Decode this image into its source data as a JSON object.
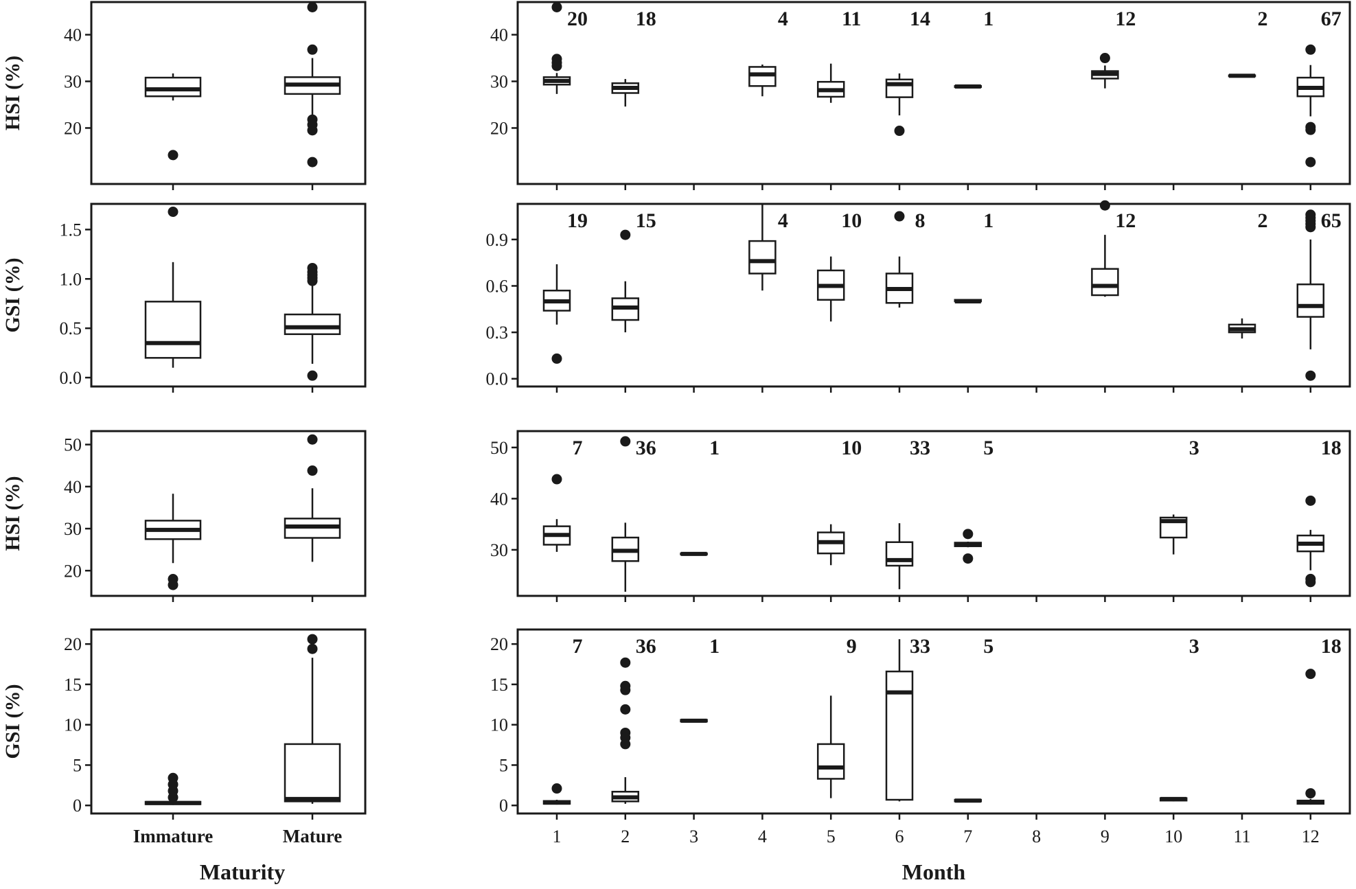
{
  "figure": {
    "left_xlabel": "Maturity",
    "right_xlabel": "Month",
    "maturity_labels": [
      "Immature",
      "Mature"
    ],
    "month_labels": [
      "1",
      "2",
      "3",
      "4",
      "5",
      "6",
      "7",
      "8",
      "9",
      "10",
      "11",
      "12"
    ]
  },
  "chart_data": [
    {
      "type": "box",
      "ylabel": "HSI (%)",
      "xlabel": "",
      "yticks": [
        20,
        30,
        40
      ],
      "ylim": [
        8,
        47
      ],
      "categories": [
        "Immature",
        "Mature"
      ],
      "boxes": [
        {
          "x": 1,
          "q1": 26.8,
          "median": 28.3,
          "q3": 30.8,
          "whislo": 25.9,
          "whishi": 31.7,
          "outliers": [
            14.2
          ]
        },
        {
          "x": 2,
          "q1": 27.3,
          "median": 29.3,
          "q3": 30.9,
          "whislo": 22.2,
          "whishi": 35.0,
          "outliers": [
            45.9,
            36.8,
            21.8,
            20.7,
            19.5,
            12.7
          ]
        }
      ]
    },
    {
      "type": "box",
      "ylabel": "HSI (%)",
      "xlabel": "",
      "yticks": [
        20,
        30,
        40
      ],
      "ylim": [
        8,
        47
      ],
      "categories": [
        "1",
        "2",
        "3",
        "4",
        "5",
        "6",
        "7",
        "8",
        "9",
        "10",
        "11",
        "12"
      ],
      "boxes": [
        {
          "x": 1,
          "q1": 29.3,
          "median": 30.1,
          "q3": 30.9,
          "whislo": 27.3,
          "whishi": 31.8,
          "outliers": [
            45.9,
            34.8,
            34.0,
            33.3
          ]
        },
        {
          "x": 2,
          "q1": 27.5,
          "median": 28.6,
          "q3": 29.6,
          "whislo": 24.6,
          "whishi": 30.5,
          "outliers": []
        },
        {
          "x": 4,
          "q1": 29.0,
          "median": 31.5,
          "q3": 33.1,
          "whislo": 26.8,
          "whishi": 33.6,
          "outliers": []
        },
        {
          "x": 5,
          "q1": 26.7,
          "median": 28.1,
          "q3": 29.9,
          "whislo": 25.4,
          "whishi": 33.8,
          "outliers": []
        },
        {
          "x": 6,
          "q1": 26.6,
          "median": 29.4,
          "q3": 30.4,
          "whislo": 22.7,
          "whishi": 31.7,
          "outliers": [
            19.4
          ]
        },
        {
          "x": 7,
          "q1": 28.8,
          "median": 28.9,
          "q3": 29.0,
          "whislo": 28.8,
          "whishi": 29.0,
          "outliers": []
        },
        {
          "x": 9,
          "q1": 30.6,
          "median": 31.6,
          "q3": 32.2,
          "whislo": 28.5,
          "whishi": 33.4,
          "outliers": [
            35.0
          ]
        },
        {
          "x": 11,
          "q1": 31.1,
          "median": 31.2,
          "q3": 31.3,
          "whislo": 31.1,
          "whishi": 31.3,
          "outliers": []
        },
        {
          "x": 12,
          "q1": 26.8,
          "median": 28.6,
          "q3": 30.8,
          "whislo": 22.5,
          "whishi": 33.5,
          "outliers": [
            36.8,
            20.2,
            19.6,
            12.7
          ]
        }
      ],
      "counts": [
        {
          "x": 1,
          "label": "20"
        },
        {
          "x": 2,
          "label": "18"
        },
        {
          "x": 4,
          "label": "4"
        },
        {
          "x": 5,
          "label": "11"
        },
        {
          "x": 6,
          "label": "14"
        },
        {
          "x": 7,
          "label": "1"
        },
        {
          "x": 9,
          "label": "12"
        },
        {
          "x": 11,
          "label": "2"
        },
        {
          "x": 12,
          "label": "67"
        }
      ]
    },
    {
      "type": "box",
      "ylabel": "GSI (%)",
      "xlabel": "",
      "yticks": [
        0.0,
        0.5,
        1.0,
        1.5
      ],
      "yticklabels": [
        "0.0",
        "0.5",
        "1.0",
        "1.5"
      ],
      "ylim": [
        -0.09,
        1.76
      ],
      "categories": [
        "Immature",
        "Mature"
      ],
      "boxes": [
        {
          "x": 1,
          "q1": 0.2,
          "median": 0.35,
          "q3": 0.77,
          "whislo": 0.1,
          "whishi": 1.17,
          "outliers": [
            1.68
          ]
        },
        {
          "x": 2,
          "q1": 0.44,
          "median": 0.51,
          "q3": 0.64,
          "whislo": 0.14,
          "whishi": 0.93,
          "outliers": [
            1.11,
            1.07,
            1.04,
            1.01,
            0.98,
            0.02
          ]
        }
      ]
    },
    {
      "type": "box",
      "ylabel": "GSI (%)",
      "xlabel": "",
      "yticks": [
        0.0,
        0.3,
        0.6,
        0.9
      ],
      "yticklabels": [
        "0.0",
        "0.3",
        "0.6",
        "0.9"
      ],
      "ylim": [
        -0.05,
        1.13
      ],
      "categories": [
        "1",
        "2",
        "3",
        "4",
        "5",
        "6",
        "7",
        "8",
        "9",
        "10",
        "11",
        "12"
      ],
      "boxes": [
        {
          "x": 1,
          "q1": 0.44,
          "median": 0.5,
          "q3": 0.57,
          "whislo": 0.35,
          "whishi": 0.74,
          "outliers": [
            0.13
          ]
        },
        {
          "x": 2,
          "q1": 0.38,
          "median": 0.46,
          "q3": 0.52,
          "whislo": 0.3,
          "whishi": 0.63,
          "outliers": [
            0.93
          ]
        },
        {
          "x": 4,
          "q1": 0.68,
          "median": 0.76,
          "q3": 0.89,
          "whislo": 0.57,
          "whishi": 1.13,
          "outliers": []
        },
        {
          "x": 5,
          "q1": 0.51,
          "median": 0.6,
          "q3": 0.7,
          "whislo": 0.37,
          "whishi": 0.79,
          "outliers": []
        },
        {
          "x": 6,
          "q1": 0.49,
          "median": 0.58,
          "q3": 0.68,
          "whislo": 0.46,
          "whishi": 0.79,
          "outliers": [
            1.05
          ]
        },
        {
          "x": 7,
          "q1": 0.5,
          "median": 0.5,
          "q3": 0.51,
          "whislo": 0.5,
          "whishi": 0.51,
          "outliers": []
        },
        {
          "x": 9,
          "q1": 0.54,
          "median": 0.6,
          "q3": 0.71,
          "whislo": 0.53,
          "whishi": 0.93,
          "outliers": [
            1.12
          ]
        },
        {
          "x": 11,
          "q1": 0.3,
          "median": 0.32,
          "q3": 0.35,
          "whislo": 0.26,
          "whishi": 0.39,
          "outliers": []
        },
        {
          "x": 12,
          "q1": 0.4,
          "median": 0.47,
          "q3": 0.61,
          "whislo": 0.19,
          "whishi": 0.9,
          "outliers": [
            1.06,
            1.04,
            1.02,
            1.0,
            0.98,
            0.02
          ]
        }
      ],
      "counts": [
        {
          "x": 1,
          "label": "19"
        },
        {
          "x": 2,
          "label": "15"
        },
        {
          "x": 4,
          "label": "4"
        },
        {
          "x": 5,
          "label": "10"
        },
        {
          "x": 6,
          "label": "8"
        },
        {
          "x": 7,
          "label": "1"
        },
        {
          "x": 9,
          "label": "12"
        },
        {
          "x": 11,
          "label": "2"
        },
        {
          "x": 12,
          "label": "65"
        }
      ]
    },
    {
      "type": "box",
      "ylabel": "HSI (%)",
      "xlabel": "",
      "yticks": [
        20,
        30,
        40,
        50
      ],
      "ylim": [
        14,
        53.2
      ],
      "categories": [
        "Immature",
        "Mature"
      ],
      "boxes": [
        {
          "x": 1,
          "q1": 27.5,
          "median": 29.7,
          "q3": 31.9,
          "whislo": 21.8,
          "whishi": 38.3,
          "outliers": [
            18.0,
            16.6
          ]
        },
        {
          "x": 2,
          "q1": 27.8,
          "median": 30.5,
          "q3": 32.4,
          "whislo": 22.1,
          "whishi": 39.6,
          "outliers": [
            51.2,
            43.8
          ]
        }
      ]
    },
    {
      "type": "box",
      "ylabel": "HSI (%)",
      "xlabel": "",
      "yticks": [
        30,
        40,
        50
      ],
      "ylim": [
        21,
        53.2
      ],
      "categories": [
        "1",
        "2",
        "3",
        "4",
        "5",
        "6",
        "7",
        "8",
        "9",
        "10",
        "11",
        "12"
      ],
      "boxes": [
        {
          "x": 1,
          "q1": 31.0,
          "median": 32.9,
          "q3": 34.6,
          "whislo": 29.6,
          "whishi": 36.0,
          "outliers": [
            43.8
          ]
        },
        {
          "x": 2,
          "q1": 27.8,
          "median": 29.8,
          "q3": 32.4,
          "whislo": 21.8,
          "whishi": 35.3,
          "outliers": [
            51.2
          ]
        },
        {
          "x": 3,
          "q1": 29.1,
          "median": 29.2,
          "q3": 29.3,
          "whislo": 29.1,
          "whishi": 29.3,
          "outliers": []
        },
        {
          "x": 5,
          "q1": 29.3,
          "median": 31.5,
          "q3": 33.4,
          "whislo": 27.0,
          "whishi": 35.0,
          "outliers": []
        },
        {
          "x": 6,
          "q1": 26.9,
          "median": 28.0,
          "q3": 31.5,
          "whislo": 22.3,
          "whishi": 35.2,
          "outliers": []
        },
        {
          "x": 7,
          "q1": 30.7,
          "median": 31.0,
          "q3": 31.4,
          "whislo": 30.5,
          "whishi": 31.6,
          "outliers": [
            33.1,
            28.3
          ]
        },
        {
          "x": 10,
          "q1": 32.4,
          "median": 35.6,
          "q3": 36.3,
          "whislo": 29.1,
          "whishi": 36.9,
          "outliers": []
        },
        {
          "x": 12,
          "q1": 29.7,
          "median": 31.2,
          "q3": 32.8,
          "whislo": 26.0,
          "whishi": 33.9,
          "outliers": [
            39.6,
            24.3,
            23.7
          ]
        }
      ],
      "counts": [
        {
          "x": 1,
          "label": "7"
        },
        {
          "x": 2,
          "label": "36"
        },
        {
          "x": 3,
          "label": "1"
        },
        {
          "x": 5,
          "label": "10"
        },
        {
          "x": 6,
          "label": "33"
        },
        {
          "x": 7,
          "label": "5"
        },
        {
          "x": 10,
          "label": "3"
        },
        {
          "x": 12,
          "label": "18"
        }
      ]
    },
    {
      "type": "box",
      "ylabel": "GSI (%)",
      "xlabel": "Maturity",
      "yticks": [
        0,
        5,
        10,
        15,
        20
      ],
      "ylim": [
        -1,
        21.8
      ],
      "categories": [
        "Immature",
        "Mature"
      ],
      "boxes": [
        {
          "x": 1,
          "q1": 0.15,
          "median": 0.3,
          "q3": 0.45,
          "whislo": 0.05,
          "whishi": 0.8,
          "outliers": [
            3.4,
            2.6,
            1.8,
            1.0
          ]
        },
        {
          "x": 2,
          "q1": 0.5,
          "median": 0.8,
          "q3": 7.6,
          "whislo": 0.2,
          "whishi": 18.3,
          "outliers": [
            20.6,
            19.4
          ]
        }
      ]
    },
    {
      "type": "box",
      "ylabel": "GSI (%)",
      "xlabel": "Month",
      "yticks": [
        0,
        5,
        10,
        15,
        20
      ],
      "ylim": [
        -1,
        21.8
      ],
      "categories": [
        "1",
        "2",
        "3",
        "4",
        "5",
        "6",
        "7",
        "8",
        "9",
        "10",
        "11",
        "12"
      ],
      "boxes": [
        {
          "x": 1,
          "q1": 0.2,
          "median": 0.35,
          "q3": 0.55,
          "whislo": 0.1,
          "whishi": 0.7,
          "outliers": [
            2.1
          ]
        },
        {
          "x": 2,
          "q1": 0.5,
          "median": 1.0,
          "q3": 1.7,
          "whislo": 0.2,
          "whishi": 3.5,
          "outliers": [
            17.7,
            14.8,
            14.3,
            11.9,
            9.0,
            8.4,
            7.6
          ]
        },
        {
          "x": 3,
          "q1": 10.4,
          "median": 10.5,
          "q3": 10.6,
          "whislo": 10.4,
          "whishi": 10.6,
          "outliers": []
        },
        {
          "x": 5,
          "q1": 3.3,
          "median": 4.7,
          "q3": 7.6,
          "whislo": 0.9,
          "whishi": 13.6,
          "outliers": []
        },
        {
          "x": 6,
          "q1": 0.7,
          "median": 14.0,
          "q3": 16.6,
          "whislo": 0.5,
          "whishi": 20.6,
          "outliers": []
        },
        {
          "x": 7,
          "q1": 0.5,
          "median": 0.6,
          "q3": 0.7,
          "whislo": 0.4,
          "whishi": 0.8,
          "outliers": []
        },
        {
          "x": 10,
          "q1": 0.6,
          "median": 0.8,
          "q3": 0.9,
          "whislo": 0.5,
          "whishi": 1.0,
          "outliers": []
        },
        {
          "x": 12,
          "q1": 0.2,
          "median": 0.4,
          "q3": 0.6,
          "whislo": 0.1,
          "whishi": 0.8,
          "outliers": [
            16.3,
            1.5
          ]
        }
      ],
      "counts": [
        {
          "x": 1,
          "label": "7"
        },
        {
          "x": 2,
          "label": "36"
        },
        {
          "x": 3,
          "label": "1"
        },
        {
          "x": 5,
          "label": "9"
        },
        {
          "x": 6,
          "label": "33"
        },
        {
          "x": 7,
          "label": "5"
        },
        {
          "x": 10,
          "label": "3"
        },
        {
          "x": 12,
          "label": "18"
        }
      ]
    }
  ]
}
